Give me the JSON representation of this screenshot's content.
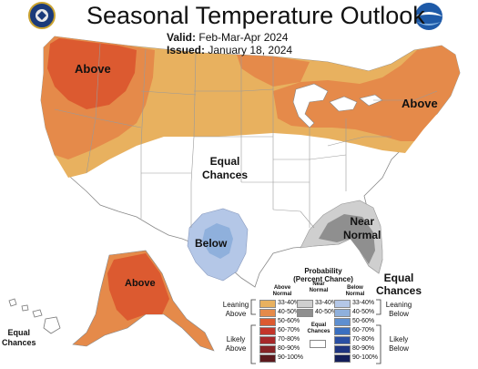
{
  "title": "Seasonal Temperature Outlook",
  "valid_label": "Valid:",
  "valid_value": "Feb-Mar-Apr 2024",
  "issued_label": "Issued:",
  "issued_value": "January 18, 2024",
  "map_labels": {
    "above_northwest": "Above",
    "above_northeast": "Above",
    "above_alaska": "Above",
    "below_texas": "Below",
    "equal_chances_center_1": "Equal",
    "equal_chances_center_2": "Chances",
    "near_normal_1": "Near",
    "near_normal_2": "Normal",
    "equal_chances_florida_1": "Equal",
    "equal_chances_florida_2": "Chances",
    "equal_chances_hawaii_1": "Equal",
    "equal_chances_hawaii_2": "Chances"
  },
  "legend": {
    "title_1": "Probability",
    "title_2": "(Percent Chance)",
    "col_above_1": "Above",
    "col_above_2": "Normal",
    "col_near_1": "Near",
    "col_near_2": "Normal",
    "col_below_1": "Below",
    "col_below_2": "Normal",
    "leaning_above_1": "Leaning",
    "leaning_above_2": "Above",
    "likely_above_1": "Likely",
    "likely_above_2": "Above",
    "leaning_below_1": "Leaning",
    "leaning_below_2": "Below",
    "likely_below_1": "Likely",
    "likely_below_2": "Below",
    "equal_1": "Equal",
    "equal_2": "Chances",
    "above_ranges": [
      "33-40%",
      "40-50%",
      "50-60%",
      "60-70%",
      "70-80%",
      "80-90%",
      "90-100%"
    ],
    "near_ranges": [
      "33-40%",
      "40-50%"
    ],
    "below_ranges": [
      "33-40%",
      "40-50%",
      "50-60%",
      "60-70%",
      "70-80%",
      "80-90%",
      "90-100%"
    ],
    "above_colors": [
      "#e8b15f",
      "#e58a4a",
      "#dc5a30",
      "#c3352a",
      "#a6282a",
      "#862427",
      "#5c1a1e"
    ],
    "near_colors": [
      "#cfcfcf",
      "#8f8f8f"
    ],
    "below_colors": [
      "#b4c7e7",
      "#8fb0dc",
      "#5e8fd0",
      "#3a6fc0",
      "#2a4fa3",
      "#1f3580",
      "#141f5a"
    ]
  },
  "colors": {
    "above_33_40": "#e8b15f",
    "above_40_50": "#e58a4a",
    "above_50_60": "#dc5a30",
    "below_33_40": "#b4c7e7",
    "below_40_50": "#8fb0dc",
    "near_33_40": "#cfcfcf",
    "near_40_50": "#8f8f8f"
  },
  "logos": {
    "left": "department-of-commerce-seal",
    "right": "noaa-logo"
  }
}
